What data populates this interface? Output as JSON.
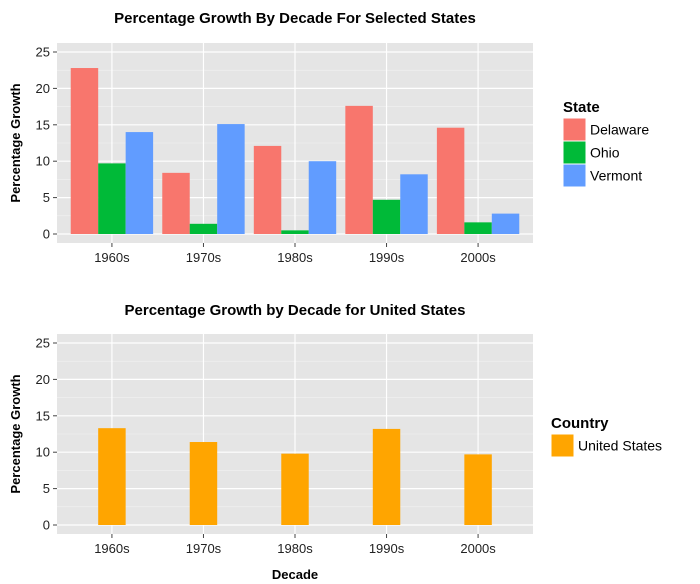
{
  "chart_data": [
    {
      "type": "bar",
      "title": "Percentage Growth By Decade For Selected States",
      "xlabel": "",
      "ylabel": "Percentage Growth",
      "categories": [
        "1960s",
        "1970s",
        "1980s",
        "1990s",
        "2000s"
      ],
      "yticks": [
        "0",
        "5",
        "10",
        "15",
        "20",
        "25"
      ],
      "ylim": [
        0,
        25
      ],
      "grid": true,
      "legend_position": "right",
      "legend_title": "State",
      "series": [
        {
          "name": "Delaware",
          "color": "#F8766D",
          "values": [
            22.8,
            8.4,
            12.1,
            17.6,
            14.6
          ]
        },
        {
          "name": "Ohio",
          "color": "#00BA38",
          "values": [
            9.7,
            1.4,
            0.5,
            4.7,
            1.6
          ]
        },
        {
          "name": "Vermont",
          "color": "#619CFF",
          "values": [
            14.0,
            15.1,
            10.0,
            8.2,
            2.8
          ]
        }
      ]
    },
    {
      "type": "bar",
      "title": "Percentage Growth by Decade for United States",
      "xlabel": "Decade",
      "ylabel": "Percentage Growth",
      "categories": [
        "1960s",
        "1970s",
        "1980s",
        "1990s",
        "2000s"
      ],
      "yticks": [
        "0",
        "5",
        "10",
        "15",
        "20",
        "25"
      ],
      "ylim": [
        0,
        25
      ],
      "grid": true,
      "legend_position": "right",
      "legend_title": "Country",
      "series": [
        {
          "name": "United States",
          "color": "#FFA500",
          "values": [
            13.3,
            11.4,
            9.8,
            13.2,
            9.7
          ]
        }
      ]
    }
  ]
}
